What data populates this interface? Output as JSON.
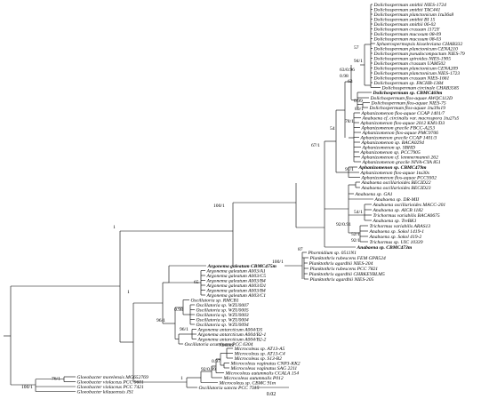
{
  "tree": {
    "taxa_group_dolicho": [
      {
        "label": "Dolichospermum smithii NIES-1724",
        "bold": false
      },
      {
        "label": "Dolichospermum smithii TAC441",
        "bold": false
      },
      {
        "label": "Dolichospermum planctonicum 1tu36s8",
        "bold": false
      },
      {
        "label": "Dolichospermum smithii BI 15",
        "bold": false
      },
      {
        "label": "Dolichospermum smithii 06-02",
        "bold": false
      },
      {
        "label": "Dolichospermum crassum 1172Y",
        "bold": false
      },
      {
        "label": "Dolichospermum mucosum 08-09",
        "bold": false
      },
      {
        "label": "Dolichospermum mucosum 08-03",
        "bold": false
      },
      {
        "label": "Sphaerospermopsis kisseleviana CHAB332",
        "bold": false
      },
      {
        "label": "Dolichospermum planctonicum CENA210",
        "bold": false
      },
      {
        "label": "Dolichospermum pseudocompactum NIES-79",
        "bold": false
      },
      {
        "label": "Dolichospermum spiroides NIES-1905",
        "bold": false
      },
      {
        "label": "Dolichospermum crassum UAM502",
        "bold": false
      },
      {
        "label": "Dolichospermum planctonicum CENA209",
        "bold": false
      },
      {
        "label": "Dolichospermum planctonicum NIES-1723",
        "bold": false
      },
      {
        "label": "Dolichospermum crassum NIES-1661",
        "bold": false
      },
      {
        "label": "Dolichospermum sp. FACHB-1384",
        "bold": false
      },
      {
        "label": "Dolichospermum circinale CHAB3585",
        "bold": false
      },
      {
        "label": "Dolichospermum sp. CBMC469m",
        "bold": true
      },
      {
        "label": "Dolichospermum flos-aquae AWQC112D",
        "bold": false
      },
      {
        "label": "Dolichospermum flos-aquae NIES-75",
        "bold": false
      },
      {
        "label": "Dolichospermum flos-aquae 1tu39s19",
        "bold": false
      },
      {
        "label": "Aphanizomenon flos-aquae CCAP 1401/7",
        "bold": false
      },
      {
        "label": "Anabaena cf. circinalis var. macrospora 1tu27s5",
        "bold": false
      },
      {
        "label": "Aphanizomenon flos-aquae 2012 KM1/D3",
        "bold": false
      },
      {
        "label": "Aphanizomenon gracile FBCC-A253",
        "bold": false
      },
      {
        "label": "Aphanizomenon flos-aquae PMC9706",
        "bold": false
      },
      {
        "label": "Aphanizomenon gracile CCAP 1401/3",
        "bold": false
      },
      {
        "label": "Aphanizomenon sp. BACA0294",
        "bold": false
      },
      {
        "label": "Aphanizomenon sp. SBHD",
        "bold": false
      },
      {
        "label": "Aphanizomenon sp. PCC7905",
        "bold": false
      },
      {
        "label": "Aphanizomenon cf. lemmermannii 262",
        "bold": false
      },
      {
        "label": "Aphanizomenon gracile NIVA-CYA 851",
        "bold": false
      },
      {
        "label": "Aphanizomenon sp. CBMC479m",
        "bold": true
      },
      {
        "label": "Aphanizomenon flos-aquae 1tu30s",
        "bold": false
      },
      {
        "label": "Aphanizomenon flos-aquae PCC9302",
        "bold": false
      }
    ],
    "taxa_group_anabaena": [
      {
        "label": "Anabaena oscillarioides BECID22",
        "bold": false
      },
      {
        "label": "Anabaena oscillarioides BECID23",
        "bold": false
      },
      {
        "label": "Anabaena sp. GA1",
        "bold": false
      },
      {
        "label": "Anabaena sp. DR-MII",
        "bold": false
      },
      {
        "label": "Anabaena oscillarioides MACC-201",
        "bold": false
      },
      {
        "label": "Anabaena sp. AICB 1182",
        "bold": false
      },
      {
        "label": "Trichormus variabilis BACA0675",
        "bold": false
      },
      {
        "label": "Anabaena sp. TreBK1",
        "bold": false
      },
      {
        "label": "Trichormus variabilis ARAS13",
        "bold": false
      },
      {
        "label": "Anabaena sp. Sokol 1419-1",
        "bold": false
      },
      {
        "label": "Anabaena sp. Sokol 419-2",
        "bold": false
      },
      {
        "label": "Trichormus sp. UIC 10339",
        "bold": false
      },
      {
        "label": "Anabaena sp. CBMC473m",
        "bold": true
      }
    ],
    "taxa_group_planktothrix": [
      {
        "label": "Phormidium sp. 0511N1",
        "bold": false
      },
      {
        "label": "Planktothrix rubescens FEM GPR524",
        "bold": false
      },
      {
        "label": "Planktothrix agardhii NIES-204",
        "bold": false
      },
      {
        "label": "Planktothrix rubescens PCC 7821",
        "bold": false
      },
      {
        "label": "Planktothrix agardhii CHRKEYBLM5",
        "bold": false
      },
      {
        "label": "Planktothrix agardhii NIES-205",
        "bold": false
      }
    ],
    "taxa_group_argonema": [
      {
        "label": "Argonema galeatum CBMC475m",
        "bold": true
      },
      {
        "label": "Argonema galeatum A003/A1",
        "bold": false
      },
      {
        "label": "Argonema galeatum A003/C5",
        "bold": false
      },
      {
        "label": "Argonema galeatum A003/B4",
        "bold": false
      },
      {
        "label": "Argonema galeatum A003/D1",
        "bold": false
      },
      {
        "label": "Argonema galeatum A003/B4",
        "bold": false
      },
      {
        "label": "Argonema galeatum A003/C1",
        "bold": false
      }
    ],
    "taxa_group_oscillatoria": [
      {
        "label": "Oscillatoria sp. RMCB1",
        "bold": false
      },
      {
        "label": "Oscillatoria sp. WZU0007",
        "bold": false
      },
      {
        "label": "Oscillatoria sp. WZU0005",
        "bold": false
      },
      {
        "label": "Oscillatoria sp. WZU0003",
        "bold": false
      },
      {
        "label": "Oscillatoria sp. WZU0004",
        "bold": false
      },
      {
        "label": "Oscillatoria sp. WZU0094",
        "bold": false
      },
      {
        "label": "Argonema antarcticum A004/D5",
        "bold": false
      },
      {
        "label": "Argonema antarcticum A004/B2-1",
        "bold": false
      },
      {
        "label": "Argonema antarcticum A004/B2-2",
        "bold": false
      },
      {
        "label": "Oscillatoria acuminata PCC 6304",
        "bold": false
      }
    ],
    "taxa_group_microcoleus": [
      {
        "label": "Microcoleus sp. AT13-A5",
        "bold": false
      },
      {
        "label": "Microcoleus sp. AT13-C4",
        "bold": false
      },
      {
        "label": "Microcoleus sp. S13-B2",
        "bold": false
      },
      {
        "label": "Microcoleus vaginatus CNP3-KK2",
        "bold": false
      },
      {
        "label": "Microcoleus vaginatus SAG 2211",
        "bold": false
      },
      {
        "label": "Microcoleus autumnalis CCALA 154",
        "bold": false
      },
      {
        "label": "Microcoleus autumnalis P012",
        "bold": false
      },
      {
        "label": "Microcoleus sp. CBMC 91m",
        "bold": false
      },
      {
        "label": "Oscillatoria sancta PCC 7515",
        "bold": false
      }
    ],
    "taxa_group_gloeobacter": [
      {
        "label": "Gloeobacter morelensis MG652769",
        "bold": false
      },
      {
        "label": "Gloeobacter violaceus PCC 9601",
        "bold": false
      },
      {
        "label": "Gloeobacter violaceus PCC 7421",
        "bold": false
      },
      {
        "label": "Gloeobacter kilaueensis JS1",
        "bold": false
      }
    ],
    "support_values": {
      "s57": "57",
      "s94": "94/1",
      "s63": "63/0.96",
      "s63b": "63",
      "s98": "0.98",
      "s99": "0.99",
      "s80": "80/1",
      "s78": "78/1",
      "s54": "54",
      "s67": "67/1",
      "s91": "91/1",
      "s1a": "1",
      "s100a": "100/1",
      "s54b": "54/1",
      "s92": "92/0.91",
      "s52": "52/1",
      "s92b": "92/1",
      "s1b": "1",
      "s87": "87",
      "s100b": "100/1",
      "s1c": "1",
      "s65": "65",
      "s98b": "0.98",
      "s96": "96/1",
      "s96b": "96/1",
      "s73": "73/0.99",
      "s097": "0.97",
      "s92c": "92/0.99",
      "s1d": "1",
      "s76": "76/1",
      "s100c": "100/1"
    },
    "scale_bar_label": "0.02"
  }
}
